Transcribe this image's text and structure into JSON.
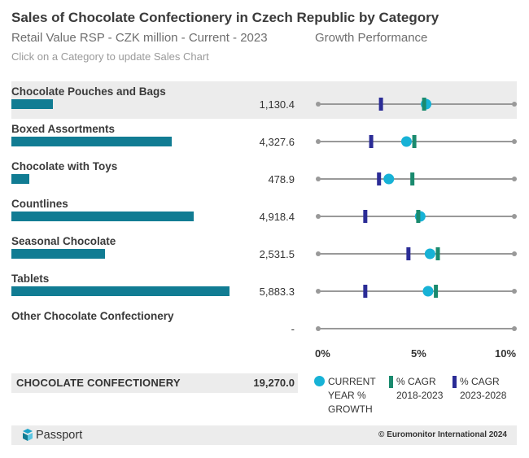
{
  "header": {
    "title": "Sales of Chocolate Confectionery in Czech Republic by Category",
    "subtitle": "Retail Value RSP - CZK million - Current - 2023",
    "growth_title": "Growth Performance",
    "hint": "Click on a Category to update Sales Chart"
  },
  "colors": {
    "bar": "#117c93",
    "current_growth": "#17b2d6",
    "cagr_2018_2023": "#1a8a6e",
    "cagr_2023_2028": "#2b2c96",
    "axis_line": "#999999",
    "selected_row": "#ececec"
  },
  "chart_data": {
    "type": "bar",
    "categories": [
      "Chocolate Pouches and Bags",
      "Boxed Assortments",
      "Chocolate with Toys",
      "Countlines",
      "Seasonal Chocolate",
      "Tablets",
      "Other Chocolate Confectionery"
    ],
    "values": [
      1130.4,
      4327.6,
      478.9,
      4918.4,
      2531.5,
      5883.3,
      null
    ],
    "value_labels": [
      "1,130.4",
      "4,327.6",
      "478.9",
      "4,918.4",
      "2,531.5",
      "5,883.3",
      "-"
    ],
    "selected_category": "Chocolate Pouches and Bags",
    "total": {
      "label": "CHOCOLATE CONFECTIONERY",
      "value": "19,270.0"
    },
    "growth": {
      "type": "scatter",
      "xlim": [
        0,
        10
      ],
      "x_ticks": [
        "0%",
        "5%",
        "10%"
      ],
      "series": [
        {
          "name": "CURRENT YEAR % GROWTH",
          "marker": "circle",
          "values": [
            5.5,
            4.5,
            3.6,
            5.2,
            5.7,
            5.6,
            null
          ]
        },
        {
          "name": "% CAGR 2018-2023",
          "marker": "bar",
          "values": [
            5.4,
            4.9,
            4.8,
            5.1,
            6.1,
            6.0,
            null
          ]
        },
        {
          "name": "% CAGR 2023-2028",
          "marker": "bar",
          "values": [
            3.2,
            2.7,
            3.1,
            2.4,
            4.6,
            2.4,
            null
          ]
        }
      ]
    }
  },
  "legend": {
    "current": "CURRENT\nYEAR %\nGROWTH",
    "cagr_past": "% CAGR\n2018-2023",
    "cagr_future": "% CAGR\n2023-2028"
  },
  "footer": {
    "brand": "Passport",
    "copyright": "© Euromonitor International 2024"
  }
}
